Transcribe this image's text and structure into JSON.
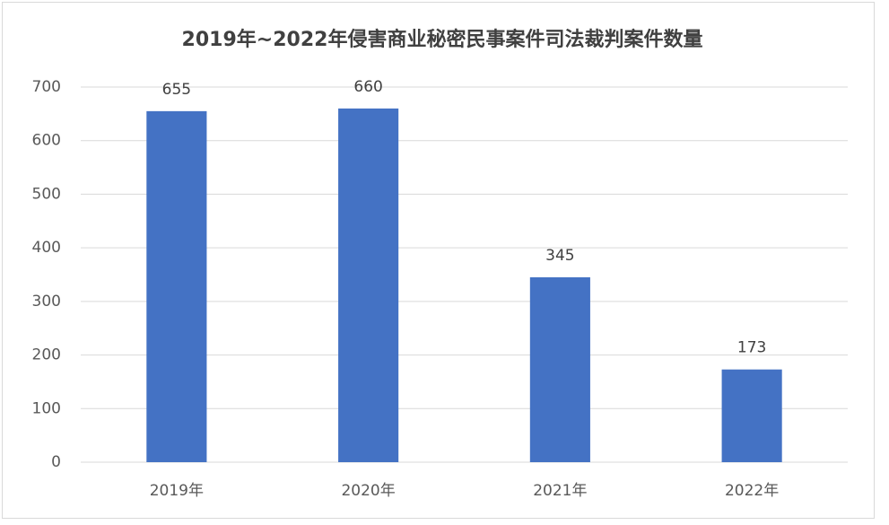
{
  "chart_data": {
    "type": "bar",
    "title": "2019年~2022年侵害商业秘密民事案件司法裁判案件数量",
    "categories": [
      "2019年",
      "2020年",
      "2021年",
      "2022年"
    ],
    "values": [
      655,
      660,
      345,
      173
    ],
    "color": "#4472c4",
    "ylim": [
      0,
      700
    ],
    "yticks": [
      0,
      100,
      200,
      300,
      400,
      500,
      600,
      700
    ],
    "grid": true
  }
}
